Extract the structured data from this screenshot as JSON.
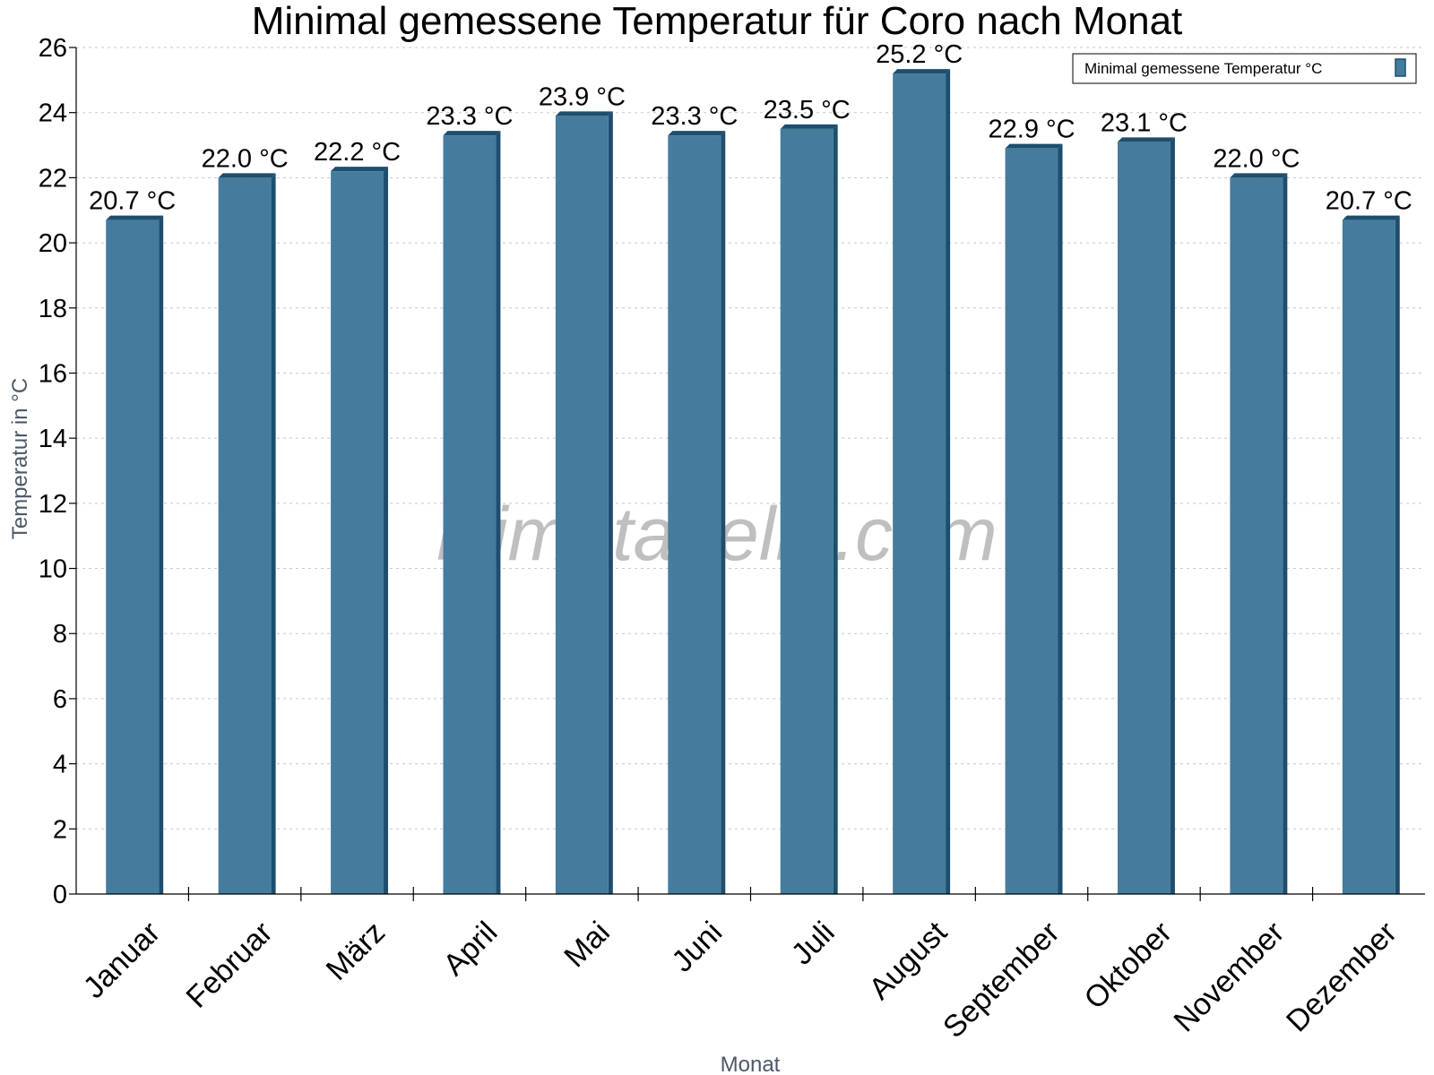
{
  "chart_data": {
    "type": "bar",
    "title": "Minimal gemessene Temperatur für Coro nach Monat",
    "xlabel": "Monat",
    "ylabel": "Temperatur in °C",
    "ylim": [
      0,
      26
    ],
    "ytick_step": 2,
    "grid": true,
    "legend_position": "top-right",
    "watermark": "klimatabelle.com",
    "categories": [
      "Januar",
      "Februar",
      "März",
      "April",
      "Mai",
      "Juni",
      "Juli",
      "August",
      "September",
      "Oktober",
      "November",
      "Dezember"
    ],
    "series": [
      {
        "name": "Minimal gemessene Temperatur °C",
        "values": [
          20.7,
          22.0,
          22.2,
          23.3,
          23.9,
          23.3,
          23.5,
          25.2,
          22.9,
          23.1,
          22.0,
          20.7
        ],
        "labels": [
          "20.7 °C",
          "22.0 °C",
          "22.2 °C",
          "23.3 °C",
          "23.9 °C",
          "23.3 °C",
          "23.5 °C",
          "25.2 °C",
          "22.9 °C",
          "23.1 °C",
          "22.0 °C",
          "20.7 °C"
        ],
        "color": "#457b9d",
        "side_color": "#1d4e6d"
      }
    ]
  }
}
